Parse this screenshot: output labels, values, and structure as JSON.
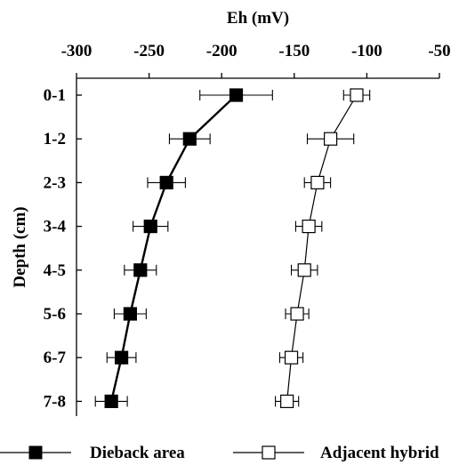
{
  "chart_data": {
    "type": "line",
    "title": "",
    "xlabel": "Eh (mV)",
    "ylabel": "Depth (cm)",
    "x_axis_position": "top",
    "xlim": [
      -300,
      -50
    ],
    "x_ticks": [
      -300,
      -250,
      -200,
      -150,
      -100,
      -50
    ],
    "x_tick_labels": [
      "-300",
      "-250",
      "-200",
      "-150",
      "-100",
      "-50"
    ],
    "categories": [
      "0-1",
      "1-2",
      "2-3",
      "3-4",
      "4-5",
      "5-6",
      "6-7",
      "7-8"
    ],
    "grid": false,
    "legend_position": "bottom",
    "series": [
      {
        "name": "Dieback area",
        "marker": "filled-square",
        "color": "#000000",
        "values": [
          -190,
          -222,
          -238,
          -249,
          -256,
          -263,
          -269,
          -276
        ],
        "error": [
          25,
          14,
          13,
          12,
          11,
          11,
          10,
          11
        ]
      },
      {
        "name": "Adjacent hybrid",
        "marker": "open-square",
        "color": "#000000",
        "values": [
          -107,
          -125,
          -134,
          -140,
          -143,
          -148,
          -152,
          -155
        ],
        "error": [
          9,
          16,
          9,
          9,
          9,
          8,
          8,
          8
        ]
      }
    ]
  }
}
